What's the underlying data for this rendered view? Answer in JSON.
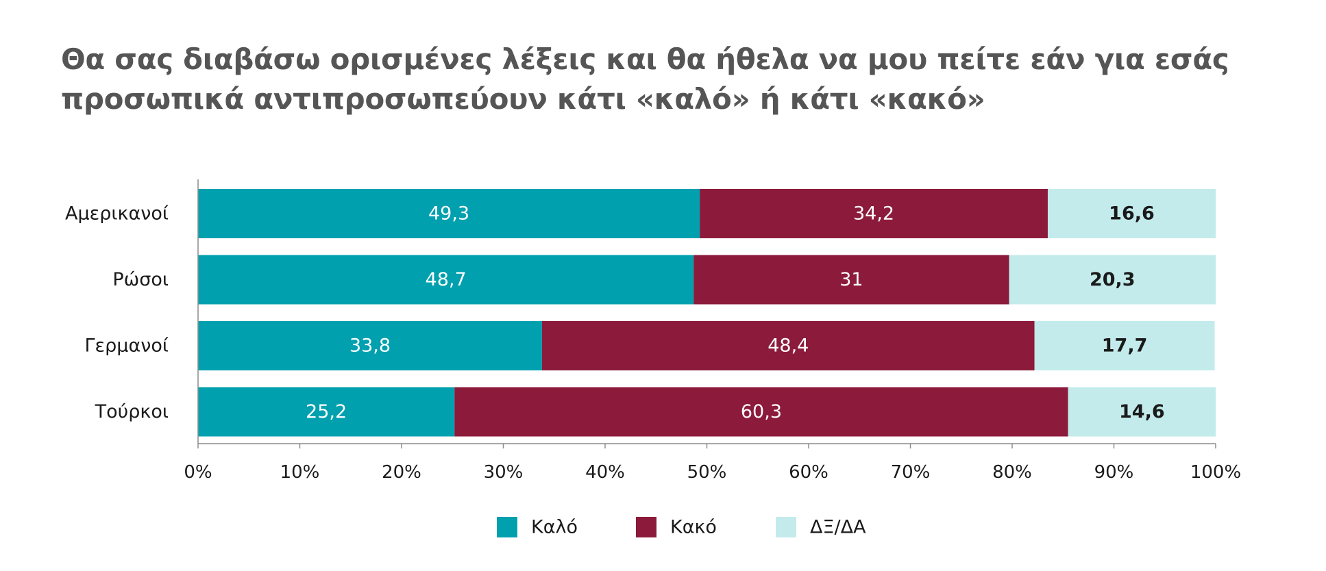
{
  "chart_data": {
    "type": "bar",
    "orientation": "horizontal",
    "stacked": true,
    "title_lines": [
      "Θα σας διαβάσω ορισμένες λέξεις και θα ήθελα να μου πείτε εάν για εσάς",
      "προσωπικά αντιπροσωπεύουν κάτι «καλό» ή κάτι «κακό»"
    ],
    "categories": [
      "Αμερικανοί",
      "Ρώσοι",
      "Γερμανοί",
      "Τούρκοι"
    ],
    "series": [
      {
        "name": "Καλό",
        "color": "#00A0AF",
        "label_color": "#ffffff",
        "label_bold": false,
        "values": [
          49.3,
          48.7,
          33.8,
          25.2
        ],
        "labels": [
          "49,3",
          "48,7",
          "33,8",
          "25,2"
        ]
      },
      {
        "name": "Κακό",
        "color": "#8C1A3B",
        "label_color": "#ffffff",
        "label_bold": false,
        "values": [
          34.2,
          31,
          48.4,
          60.3
        ],
        "labels": [
          "34,2",
          "31",
          "48,4",
          "60,3"
        ]
      },
      {
        "name": "ΔΞ/ΔΑ",
        "color": "#C3EBEB",
        "label_color": "#1a1a1a",
        "label_bold": true,
        "values": [
          16.6,
          20.3,
          17.7,
          14.6
        ],
        "labels": [
          "16,6",
          "20,3",
          "17,7",
          "14,6"
        ]
      }
    ],
    "xlim": [
      0,
      100
    ],
    "x_ticks": [
      0,
      10,
      20,
      30,
      40,
      50,
      60,
      70,
      80,
      90,
      100
    ],
    "x_tick_labels": [
      "0%",
      "10%",
      "20%",
      "30%",
      "40%",
      "50%",
      "60%",
      "70%",
      "80%",
      "90%",
      "100%"
    ],
    "grid": false,
    "legend_position": "bottom-center"
  }
}
